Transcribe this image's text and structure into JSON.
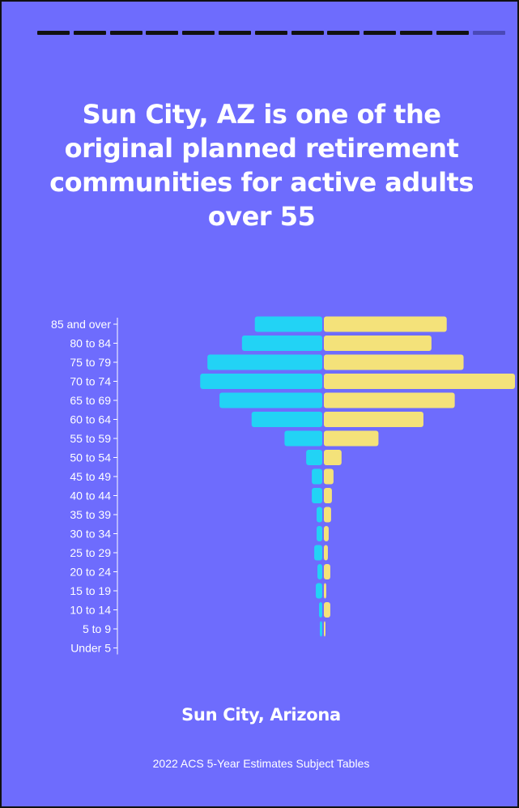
{
  "title": "Sun City, AZ is one of the original planned retirement communities for active adults over 55",
  "place": "Sun City, Arizona",
  "source": "2022 ACS 5-Year Estimates Subject Tables",
  "progress": {
    "total_segments": 13,
    "completed_segments": 12,
    "completed_color": "#111111",
    "remaining_color": "#4a49b8"
  },
  "colors": {
    "background": "#6e6cfd",
    "left_series": "#22d3f5",
    "right_series": "#f4e27a",
    "text": "#ffffff"
  },
  "chart_data": {
    "type": "bar",
    "orientation": "population-pyramid",
    "categories": [
      "85 and over",
      "80 to 84",
      "75 to 79",
      "70 to 74",
      "65 to 69",
      "60 to 64",
      "55 to 59",
      "50 to 54",
      "45 to 49",
      "40 to 44",
      "35 to 39",
      "30 to 34",
      "25 to 29",
      "20 to 24",
      "15 to 19",
      "10 to 14",
      "5 to 9",
      "Under 5"
    ],
    "series": [
      {
        "side": "left",
        "color": "#22d3f5",
        "values": [
          84,
          100,
          143,
          152,
          128,
          88,
          47,
          20,
          13,
          13,
          7,
          7,
          10,
          6,
          8,
          4,
          3,
          0
        ]
      },
      {
        "side": "right",
        "color": "#f4e27a",
        "values": [
          153,
          134,
          174,
          238,
          163,
          124,
          68,
          22,
          12,
          10,
          9,
          6,
          5,
          8,
          3,
          8,
          2,
          0
        ]
      }
    ],
    "xlim": [
      0,
      240
    ]
  }
}
